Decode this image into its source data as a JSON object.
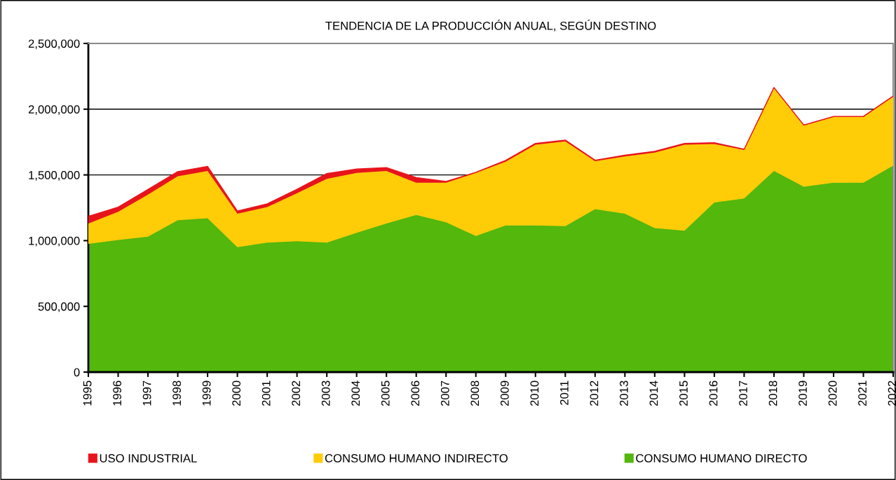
{
  "chart_data": {
    "type": "area",
    "stacked": true,
    "title": "TENDENCIA DE LA PRODUCCIÓN ANUAL, SEGÚN DESTINO",
    "categories": [
      "1995",
      "1996",
      "1997",
      "1998",
      "1999",
      "2000",
      "2001",
      "2002",
      "2003",
      "2004",
      "2005",
      "2006",
      "2007",
      "2008",
      "2009",
      "2010",
      "2011",
      "2012",
      "2013",
      "2014",
      "2015",
      "2016",
      "2017",
      "2018",
      "2019",
      "2020",
      "2021",
      "2022"
    ],
    "series": [
      {
        "name": "CONSUMO HUMANO DIRECTO",
        "color": "#53b70c",
        "values": [
          975000,
          1005000,
          1030000,
          1155000,
          1170000,
          950000,
          985000,
          995000,
          985000,
          1060000,
          1130000,
          1195000,
          1140000,
          1035000,
          1115000,
          1115000,
          1110000,
          1240000,
          1205000,
          1095000,
          1075000,
          1290000,
          1320000,
          1530000,
          1410000,
          1440000,
          1440000,
          1570000
        ]
      },
      {
        "name": "CONSUMO HUMANO INDIRECTO",
        "color": "#ffcc08",
        "values": [
          155000,
          215000,
          320000,
          335000,
          360000,
          255000,
          270000,
          365000,
          485000,
          455000,
          400000,
          245000,
          300000,
          480000,
          485000,
          615000,
          645000,
          365000,
          435000,
          575000,
          655000,
          445000,
          370000,
          630000,
          465000,
          500000,
          500000,
          525000
        ]
      },
      {
        "name": "USO INDUSTRIAL",
        "color": "#e8141c",
        "values": [
          55000,
          35000,
          40000,
          35000,
          35000,
          20000,
          25000,
          30000,
          40000,
          30000,
          25000,
          40000,
          10000,
          5000,
          10000,
          10000,
          10000,
          7000,
          10000,
          10000,
          10000,
          10000,
          5000,
          5000,
          5000,
          5000,
          5000,
          5000
        ]
      }
    ],
    "ylim": [
      0,
      2500000
    ],
    "yticks": [
      {
        "value": 0,
        "label": "0"
      },
      {
        "value": 500000,
        "label": "500,000"
      },
      {
        "value": 1000000,
        "label": "1,000,000"
      },
      {
        "value": 1500000,
        "label": "1,500,000"
      },
      {
        "value": 2000000,
        "label": "2,000,000"
      },
      {
        "value": 2500000,
        "label": "2,500,000"
      }
    ],
    "grid": "y",
    "legend": "bottom"
  }
}
